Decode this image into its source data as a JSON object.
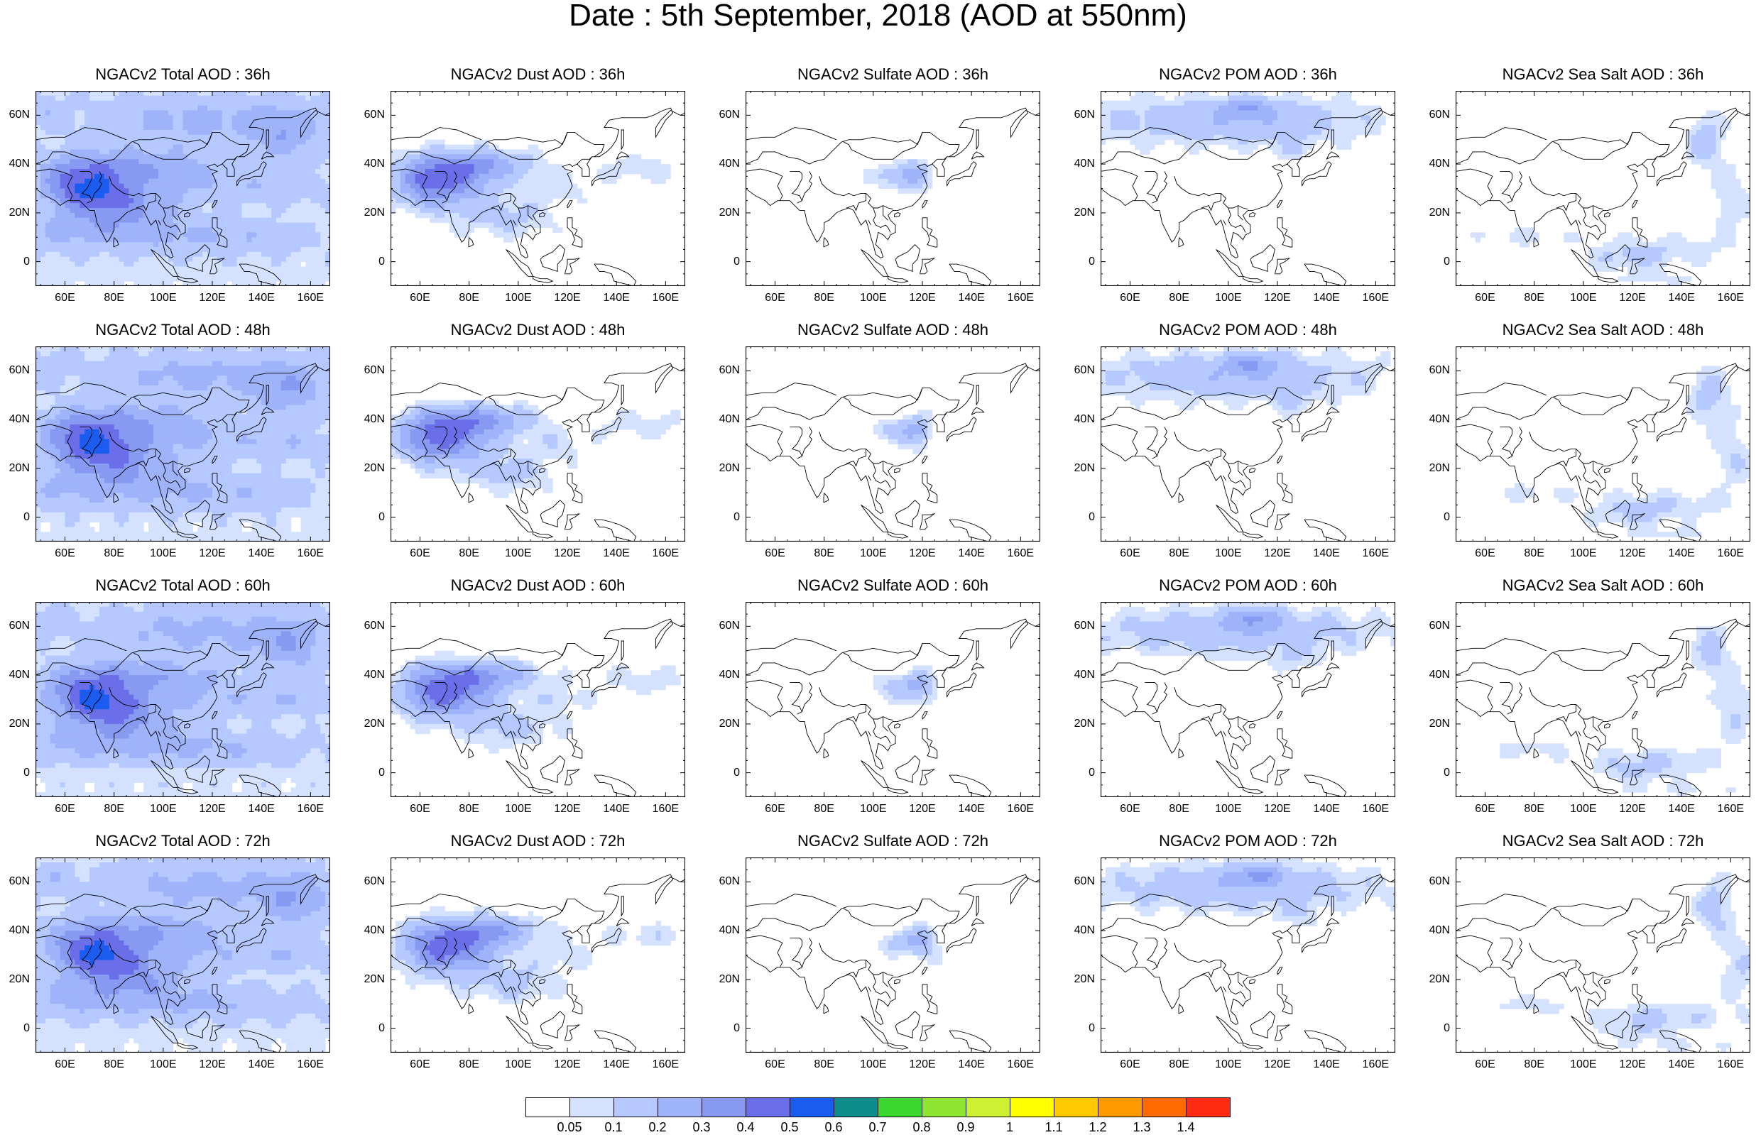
{
  "title": "Date : 5th September, 2018 (AOD at 550nm)",
  "panel_titles": [
    [
      "NGACv2 Total AOD : 36h",
      "NGACv2 Dust AOD : 36h",
      "NGACv2 Sulfate AOD : 36h",
      "NGACv2 POM AOD : 36h",
      "NGACv2 Sea Salt AOD : 36h"
    ],
    [
      "NGACv2 Total AOD : 48h",
      "NGACv2 Dust AOD : 48h",
      "NGACv2 Sulfate AOD : 48h",
      "NGACv2 POM AOD : 48h",
      "NGACv2 Sea Salt AOD : 48h"
    ],
    [
      "NGACv2 Total AOD : 60h",
      "NGACv2 Dust AOD : 60h",
      "NGACv2 Sulfate AOD : 60h",
      "NGACv2 POM AOD : 60h",
      "NGACv2 Sea Salt AOD : 60h"
    ],
    [
      "NGACv2 Total AOD : 72h",
      "NGACv2 Dust AOD : 72h",
      "NGACv2 Sulfate AOD : 72h",
      "NGACv2 POM AOD : 72h",
      "NGACv2 Sea Salt  AOD : 72h"
    ]
  ],
  "x_tick_labels": [
    "60E",
    "80E",
    "100E",
    "120E",
    "140E",
    "160E"
  ],
  "y_tick_labels": [
    "60N",
    "40N",
    "20N",
    "0"
  ],
  "map_extent": {
    "lon_min": 48,
    "lon_max": 168,
    "lat_min": -10,
    "lat_max": 70
  },
  "colorbar": {
    "labels": [
      "0.05",
      "0.1",
      "0.2",
      "0.3",
      "0.4",
      "0.5",
      "0.6",
      "0.7",
      "0.8",
      "0.9",
      "1",
      "1.1",
      "1.2",
      "1.3",
      "1.4"
    ],
    "colors": [
      "#ffffff",
      "#d5e2ff",
      "#b5c8ff",
      "#9fb3fa",
      "#8799f0",
      "#6a6ee8",
      "#1a5cf0",
      "#0e8c8c",
      "#3dd62f",
      "#8ee632",
      "#cdf032",
      "#ffff00",
      "#ffc800",
      "#ff9a00",
      "#ff6a00",
      "#ff2b12"
    ]
  }
}
